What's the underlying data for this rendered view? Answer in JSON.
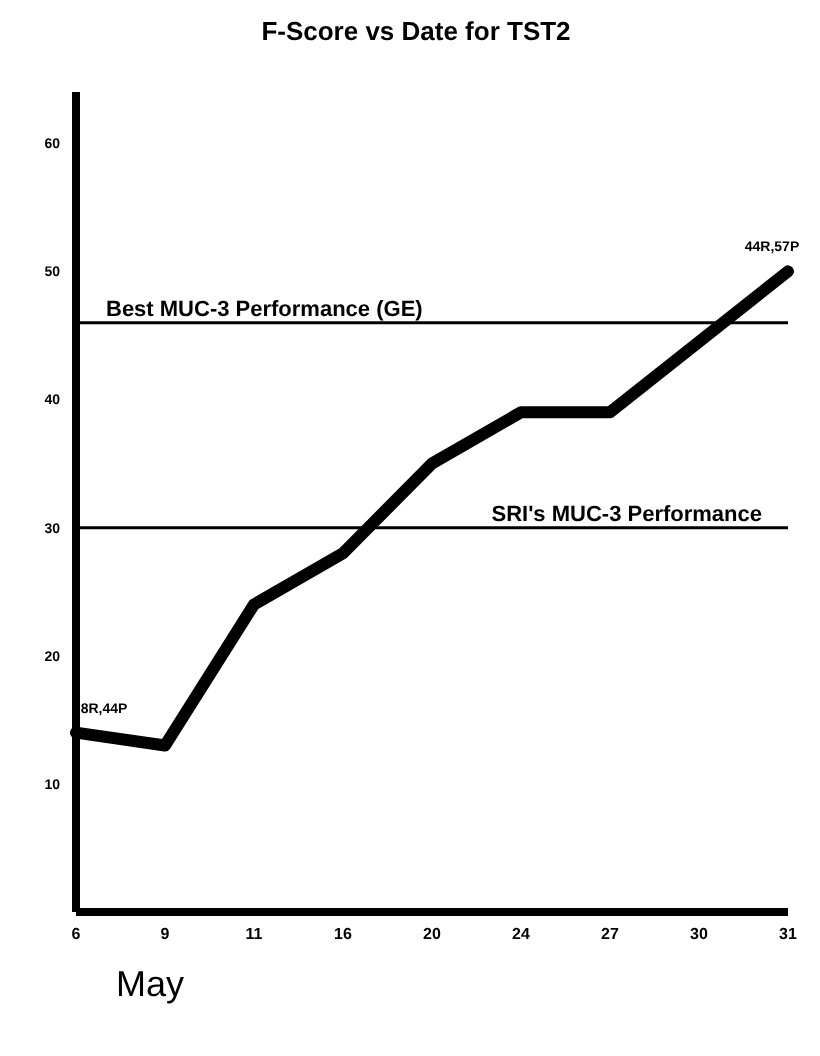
{
  "chart_data": {
    "type": "line",
    "title": "F-Score vs Date for TST2",
    "xlabel": "May",
    "categories": [
      "6",
      "9",
      "11",
      "16",
      "20",
      "24",
      "27",
      "30",
      "31"
    ],
    "series": [
      {
        "color": "#000000",
        "values": [
          14,
          13,
          24,
          28,
          35,
          39,
          39,
          null,
          50
        ]
      }
    ],
    "ylim": [
      0,
      64
    ],
    "yticks": [
      10,
      20,
      30,
      40,
      50,
      60
    ],
    "grid": false,
    "legend": false,
    "marker": "none",
    "line_style": "solid",
    "ref_lines": [
      {
        "axis": "y",
        "value": 46,
        "label": "Best MUC-3 Performance (GE)",
        "color": "#000000"
      },
      {
        "axis": "y",
        "value": 30,
        "label": "SRI's MUC-3 Performance",
        "color": "#000000"
      }
    ],
    "annotations": [
      {
        "text": "8R,44P",
        "x": "6",
        "y": 14
      },
      {
        "text": "44R,57P",
        "x": "31",
        "y": 50
      }
    ]
  }
}
